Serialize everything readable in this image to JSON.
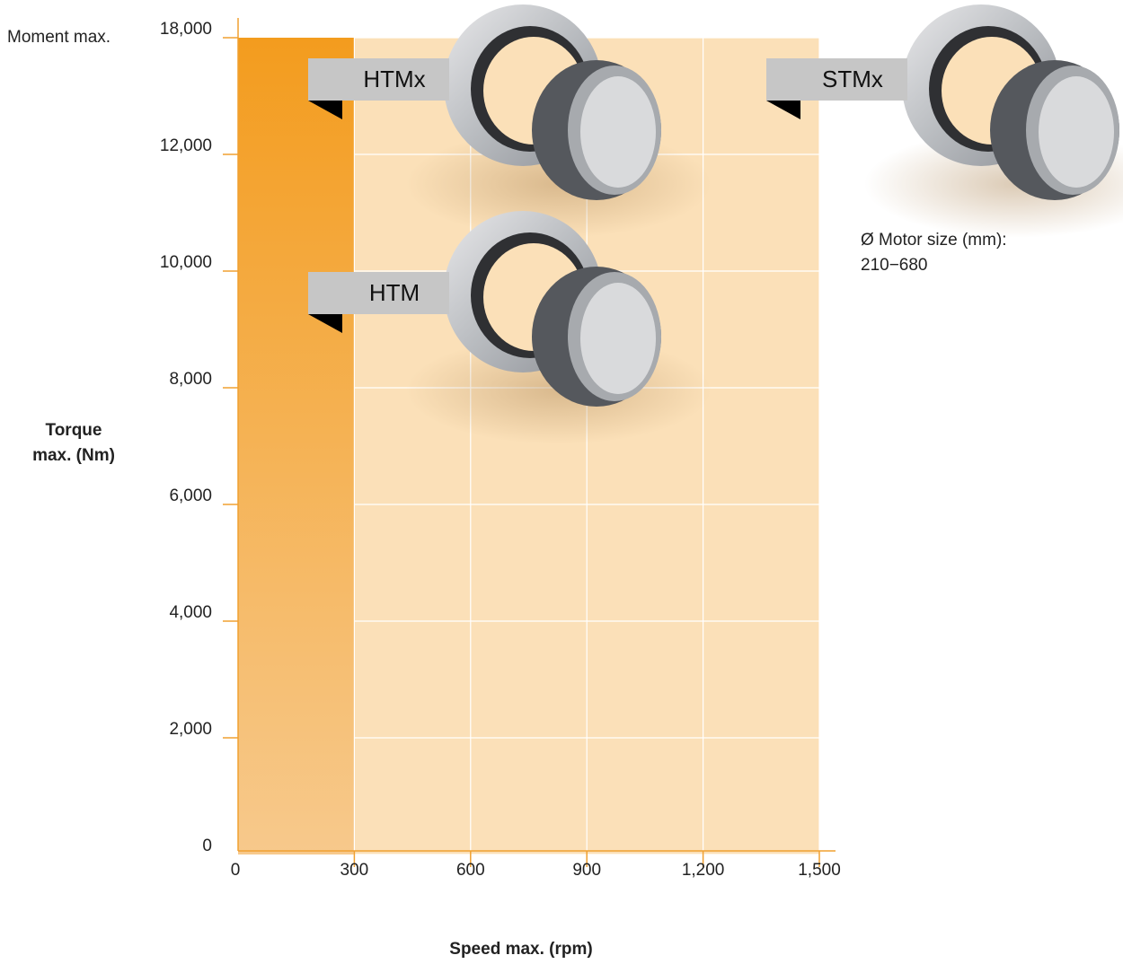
{
  "chart_data": {
    "type": "range",
    "y_label_top": "Moment max.",
    "ylabel": [
      "Torque",
      "max. (Nm)"
    ],
    "xlabel": "Speed max. (rpm)",
    "xlim": [
      0,
      1500
    ],
    "xticks": [
      0,
      300,
      600,
      {
        "value": 900,
        "label": "900"
      },
      {
        "value": 1200,
        "label": "1,200"
      },
      {
        "value": 1500,
        "label": "1,500"
      }
    ],
    "yticks": [
      0,
      {
        "value": 2000,
        "label": "2,000"
      },
      {
        "value": 4000,
        "label": "4,000"
      },
      {
        "value": 6000,
        "label": "6,000"
      },
      {
        "value": 8000,
        "label": "8,000"
      },
      {
        "value": 10000,
        "label": "10,000"
      },
      {
        "value": 12000,
        "label": "12,000"
      },
      {
        "value": 18000,
        "label": "18,000"
      }
    ],
    "regions": [
      {
        "x": [
          0,
          300
        ],
        "y": [
          0,
          18000
        ],
        "color": "#f39c1e"
      },
      {
        "x": [
          300,
          1500
        ],
        "y": [
          0,
          18000
        ],
        "color": "#fbe0b8"
      }
    ],
    "grid": true,
    "annotations": [
      "HTMx",
      "HTM",
      "STMx"
    ],
    "note": [
      "Ø Motor size (mm):",
      "210−680"
    ]
  }
}
